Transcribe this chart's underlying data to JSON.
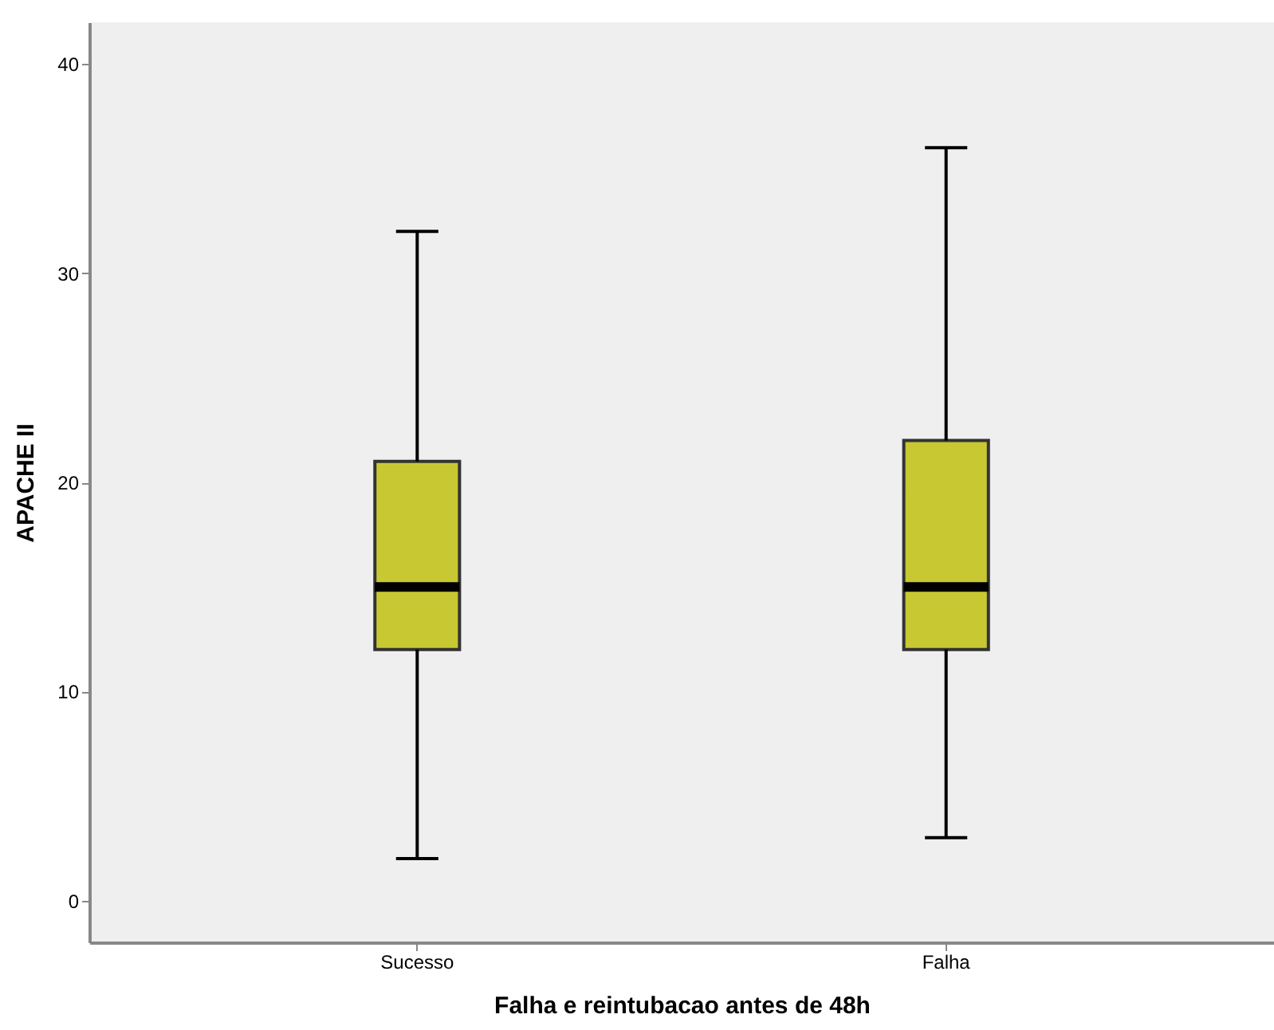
{
  "chart_data": {
    "type": "box",
    "xlabel": "Falha e reintubacao antes de 48h",
    "ylabel": "APACHE II",
    "categories": [
      "Sucesso",
      "Falha"
    ],
    "ylim": [
      -2,
      42
    ],
    "yticks": [
      0,
      10,
      20,
      30,
      40
    ],
    "series": [
      {
        "color": "#c8c832",
        "boxes": [
          {
            "low": 2,
            "q1": 12,
            "median": 15,
            "q3": 21,
            "high": 32
          },
          {
            "low": 3,
            "q1": 12,
            "median": 15,
            "q3": 22,
            "high": 36
          }
        ]
      }
    ]
  }
}
